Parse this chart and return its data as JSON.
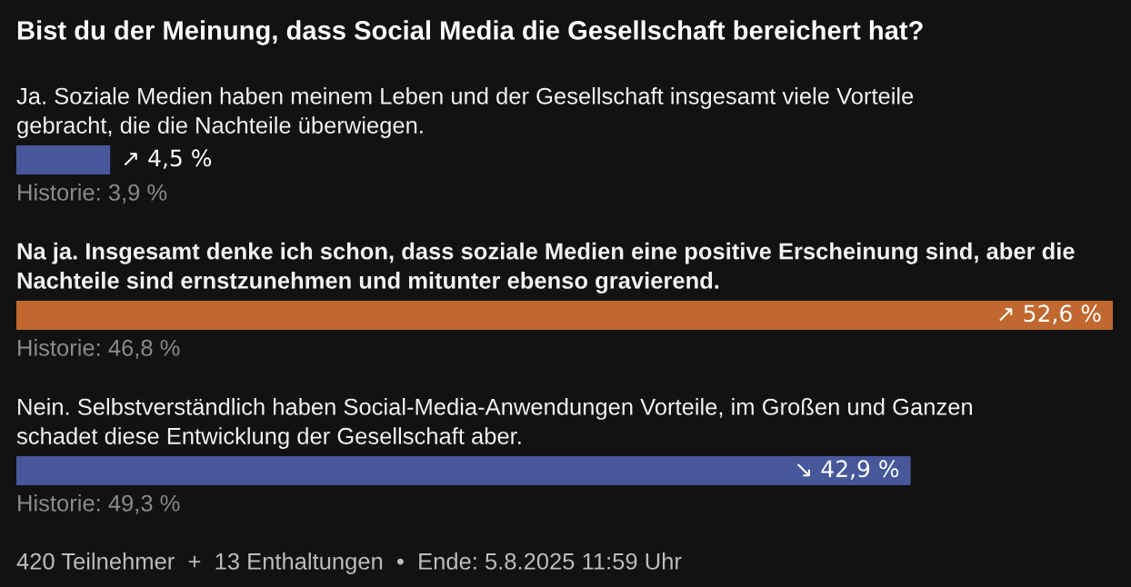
{
  "chart_data": {
    "type": "bar",
    "orientation": "horizontal",
    "title": "Bist du der Meinung, dass Social Media die Gesellschaft bereichert hat?",
    "categories": [
      "Ja. Soziale Medien haben meinem Leben und der Gesellschaft insgesamt viele Vorteile\ngebracht, die die Nachteile überwiegen.",
      "Na ja. Insgesamt denke ich schon, dass soziale Medien eine positive Erscheinung sind, aber die\nNachteile sind ernstzunehmen und mitunter ebenso gravierend.",
      "Nein. Selbstverständlich haben Social-Media-Anwendungen Vorteile, im Großen und Ganzen\nschadet diese Entwicklung der Gesellschaft aber."
    ],
    "values": [
      4.5,
      52.6,
      42.9
    ],
    "colors": [
      "#47589a",
      "#c0682f",
      "#47589a"
    ],
    "value_labels": [
      "↗ 4,5 %",
      "↗ 52,6 %",
      "↘ 42,9 %"
    ],
    "annotations": [
      "Historie: 3,9 %",
      "Historie: 46,8 %",
      "Historie: 49,3 %",
      "420 Teilnehmer  +  13 Enthaltungen  •  Ende: 5.8.2025 11:59 Uhr"
    ]
  }
}
